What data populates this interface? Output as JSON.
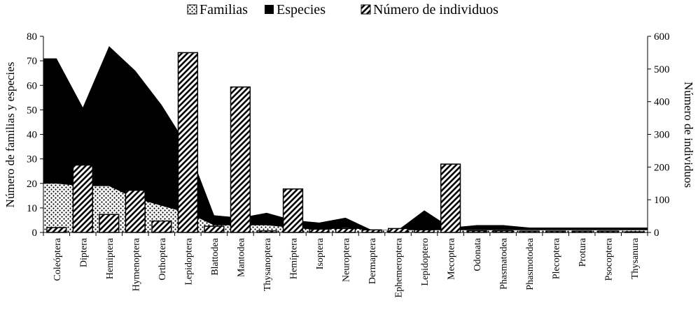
{
  "chart_data": {
    "type": "area+bar",
    "legend": {
      "placement": "top-center",
      "entries": [
        {
          "key": "familias",
          "label": "Familias",
          "pattern": "dots"
        },
        {
          "key": "especies",
          "label": "Especies",
          "pattern": "solid"
        },
        {
          "key": "individuos",
          "label": "Número de individuos",
          "pattern": "diagonal-hatch"
        }
      ]
    },
    "ylabel_left": "Número de familias y especies",
    "ylabel_right": "Número de individuos",
    "ylim_left": [
      0,
      80
    ],
    "ylim_right": [
      0,
      600
    ],
    "yticks_left": [
      0,
      10,
      20,
      30,
      40,
      50,
      60,
      70,
      80
    ],
    "yticks_right": [
      0,
      100,
      200,
      300,
      400,
      500,
      600
    ],
    "grid": false,
    "categories": [
      "Coleóptera",
      "Diptera",
      "Hemiptera",
      "Hymenoptera",
      "Orthoptera",
      "Lepidoptera",
      "Blattodea",
      "Mantodea",
      "Thysanoptera",
      "Hemíptera",
      "Isoptera",
      "Neuroptera",
      "Dermaptera",
      "Ephemeroptera",
      "Lepidoptero",
      "Mecoptera",
      "Odonata",
      "Phasmatodea",
      "Phasmotodea",
      "Plecoptera",
      "Protura",
      "Psocoptera",
      "Thysanura"
    ],
    "series": [
      {
        "name": "Especies",
        "axis": "left",
        "kind": "area",
        "values": [
          71,
          51,
          76,
          66,
          52,
          35,
          7,
          6,
          8,
          5,
          4,
          6,
          1,
          1,
          9,
          2,
          3,
          3,
          2,
          2,
          2,
          2,
          2
        ]
      },
      {
        "name": "Familias",
        "axis": "left",
        "kind": "area",
        "values": [
          20,
          19,
          19,
          14,
          11,
          8,
          3,
          3,
          3,
          2,
          1,
          2,
          1,
          1,
          1,
          1,
          1,
          1,
          1,
          1,
          1,
          1,
          1
        ]
      },
      {
        "name": "Número de individuos",
        "axis": "right",
        "kind": "bar",
        "values": [
          15,
          206,
          55,
          129,
          35,
          550,
          19,
          445,
          5,
          133,
          10,
          12,
          8,
          12,
          8,
          209,
          5,
          5,
          4,
          4,
          4,
          4,
          2
        ]
      }
    ]
  }
}
